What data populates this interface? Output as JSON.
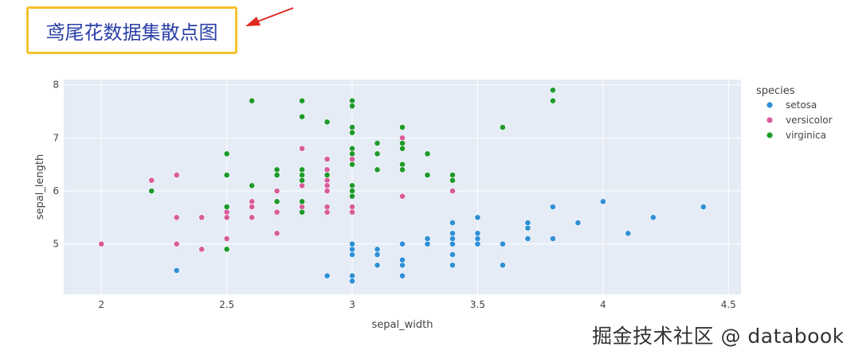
{
  "header": {
    "title": "鸢尾花数据集散点图"
  },
  "watermark": "掘金技术社区 @ databook",
  "chart_data": {
    "type": "scatter",
    "xlabel": "sepal_width",
    "ylabel": "sepal_length",
    "xlim": [
      1.85,
      4.55
    ],
    "ylim": [
      4.05,
      8.1
    ],
    "xticks": [
      2,
      2.5,
      3,
      3.5,
      4,
      4.5
    ],
    "yticks": [
      5,
      6,
      7,
      8
    ],
    "legend": {
      "title": "species",
      "placement": "right"
    },
    "colors": {
      "setosa": "#2e8fd6",
      "versicolor": "#d85c9a",
      "virginica": "#1e9a2a"
    },
    "series": [
      {
        "name": "setosa",
        "color": "#2e8fd6",
        "points": [
          [
            2.3,
            4.5
          ],
          [
            2.9,
            4.4
          ],
          [
            3.0,
            4.4
          ],
          [
            3.0,
            4.3
          ],
          [
            3.0,
            4.8
          ],
          [
            3.0,
            4.9
          ],
          [
            3.0,
            5.0
          ],
          [
            3.1,
            4.9
          ],
          [
            3.1,
            4.8
          ],
          [
            3.1,
            4.6
          ],
          [
            3.2,
            4.4
          ],
          [
            3.2,
            4.6
          ],
          [
            3.2,
            4.7
          ],
          [
            3.2,
            5.0
          ],
          [
            3.3,
            5.0
          ],
          [
            3.3,
            5.1
          ],
          [
            3.4,
            5.0
          ],
          [
            3.4,
            5.1
          ],
          [
            3.4,
            5.2
          ],
          [
            3.4,
            5.4
          ],
          [
            3.4,
            4.8
          ],
          [
            3.4,
            4.6
          ],
          [
            3.5,
            5.0
          ],
          [
            3.5,
            5.1
          ],
          [
            3.5,
            5.2
          ],
          [
            3.5,
            5.5
          ],
          [
            3.6,
            4.6
          ],
          [
            3.6,
            5.0
          ],
          [
            3.7,
            5.1
          ],
          [
            3.7,
            5.3
          ],
          [
            3.7,
            5.4
          ],
          [
            3.8,
            5.1
          ],
          [
            3.8,
            5.7
          ],
          [
            3.9,
            5.4
          ],
          [
            4.0,
            5.8
          ],
          [
            4.1,
            5.2
          ],
          [
            4.2,
            5.5
          ],
          [
            4.4,
            5.7
          ]
        ]
      },
      {
        "name": "versicolor",
        "color": "#d85c9a",
        "points": [
          [
            2.0,
            5.0
          ],
          [
            2.2,
            6.2
          ],
          [
            2.2,
            6.0
          ],
          [
            2.3,
            6.3
          ],
          [
            2.3,
            5.5
          ],
          [
            2.3,
            5.0
          ],
          [
            2.4,
            5.5
          ],
          [
            2.4,
            4.9
          ],
          [
            2.5,
            5.6
          ],
          [
            2.5,
            5.5
          ],
          [
            2.5,
            5.1
          ],
          [
            2.6,
            5.8
          ],
          [
            2.6,
            5.7
          ],
          [
            2.6,
            5.5
          ],
          [
            2.7,
            6.0
          ],
          [
            2.7,
            5.8
          ],
          [
            2.7,
            5.6
          ],
          [
            2.7,
            5.2
          ],
          [
            2.8,
            6.8
          ],
          [
            2.8,
            6.1
          ],
          [
            2.8,
            5.7
          ],
          [
            2.9,
            6.6
          ],
          [
            2.9,
            6.4
          ],
          [
            2.9,
            6.2
          ],
          [
            2.9,
            6.1
          ],
          [
            2.9,
            6.0
          ],
          [
            2.9,
            5.7
          ],
          [
            2.9,
            5.6
          ],
          [
            3.0,
            6.6
          ],
          [
            3.0,
            5.9
          ],
          [
            3.0,
            5.7
          ],
          [
            3.0,
            5.6
          ],
          [
            3.2,
            7.0
          ],
          [
            3.2,
            5.9
          ],
          [
            3.4,
            6.0
          ]
        ]
      },
      {
        "name": "virginica",
        "color": "#1e9a2a",
        "points": [
          [
            2.2,
            6.0
          ],
          [
            2.5,
            6.7
          ],
          [
            2.5,
            6.3
          ],
          [
            2.5,
            5.7
          ],
          [
            2.5,
            4.9
          ],
          [
            2.6,
            7.7
          ],
          [
            2.6,
            6.1
          ],
          [
            2.7,
            6.4
          ],
          [
            2.7,
            6.3
          ],
          [
            2.7,
            5.8
          ],
          [
            2.8,
            7.7
          ],
          [
            2.8,
            7.4
          ],
          [
            2.8,
            6.4
          ],
          [
            2.8,
            6.3
          ],
          [
            2.8,
            6.2
          ],
          [
            2.8,
            5.8
          ],
          [
            2.8,
            5.6
          ],
          [
            2.9,
            7.3
          ],
          [
            2.9,
            6.3
          ],
          [
            3.0,
            7.7
          ],
          [
            3.0,
            7.6
          ],
          [
            3.0,
            7.2
          ],
          [
            3.0,
            7.1
          ],
          [
            3.0,
            6.8
          ],
          [
            3.0,
            6.7
          ],
          [
            3.0,
            6.5
          ],
          [
            3.0,
            6.1
          ],
          [
            3.0,
            6.0
          ],
          [
            3.0,
            5.9
          ],
          [
            3.1,
            6.9
          ],
          [
            3.1,
            6.7
          ],
          [
            3.1,
            6.4
          ],
          [
            3.2,
            7.2
          ],
          [
            3.2,
            6.9
          ],
          [
            3.2,
            6.8
          ],
          [
            3.2,
            6.5
          ],
          [
            3.2,
            6.4
          ],
          [
            3.3,
            6.7
          ],
          [
            3.3,
            6.3
          ],
          [
            3.4,
            6.3
          ],
          [
            3.4,
            6.2
          ],
          [
            3.6,
            7.2
          ],
          [
            3.8,
            7.9
          ],
          [
            3.8,
            7.7
          ]
        ]
      }
    ]
  }
}
